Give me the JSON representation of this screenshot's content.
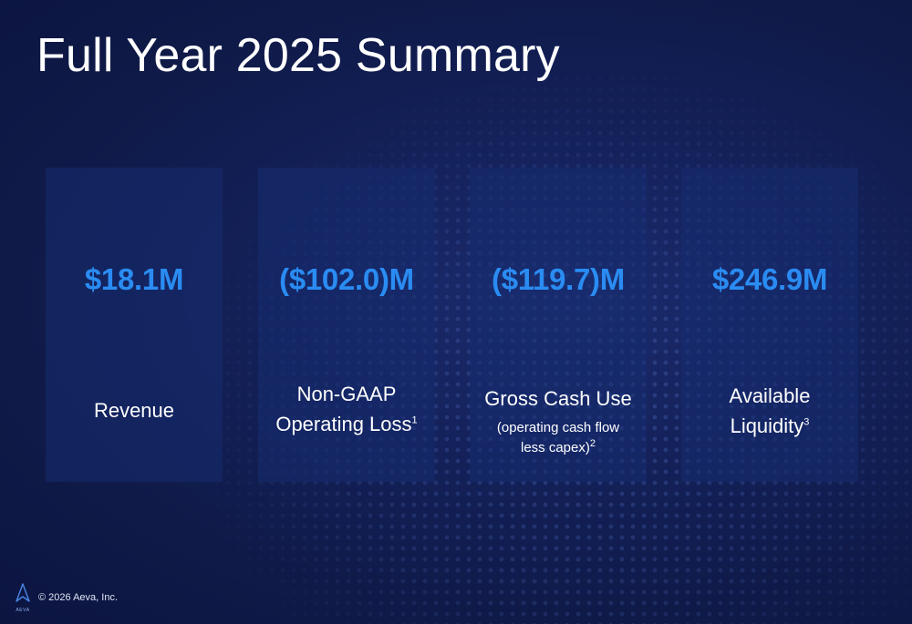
{
  "slide": {
    "title": "Full Year 2025 Summary",
    "cards": [
      {
        "value": "$18.1M",
        "label_line1": "Revenue"
      },
      {
        "value": "($102.0)M",
        "label_line1": "Non-GAAP",
        "label_line2": "Operating Loss",
        "footnote": "1"
      },
      {
        "value": "($119.7)M",
        "label_line1": "Gross Cash Use",
        "sub_line1": "(operating cash flow",
        "sub_line2": "less capex)",
        "footnote": "2"
      },
      {
        "value": "$246.9M",
        "label_line1": "Available",
        "label_line2": "Liquidity",
        "footnote": "3"
      }
    ],
    "footer": "© 2026 Aeva, Inc.",
    "logo_text": "AEVA"
  },
  "colors": {
    "value_blue": "#2a8cf2",
    "background": "#14215a"
  }
}
